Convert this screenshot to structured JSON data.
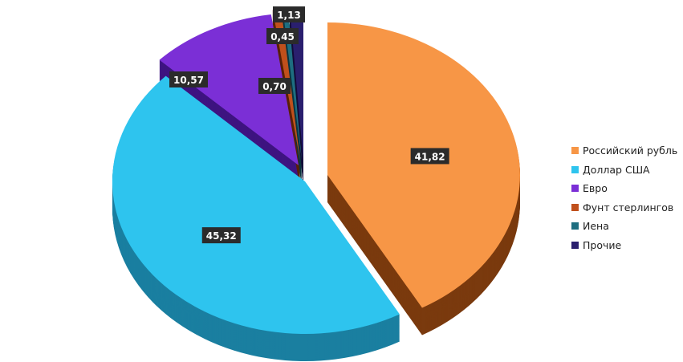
{
  "chart_data": {
    "type": "pie",
    "style": "3d-exploded",
    "categories": [
      "Российский рубль",
      "Доллар США",
      "Евро",
      "Фунт стерлингов",
      "Иена",
      "Прочие"
    ],
    "values": [
      41.82,
      45.32,
      10.57,
      0.7,
      0.45,
      1.13
    ],
    "data_labels": [
      "41,82",
      "45,32",
      "10,57",
      "0,70",
      "0,45",
      "1,13"
    ],
    "colors": [
      "#F79646",
      "#2EC4EE",
      "#7B2FD6",
      "#C0501C",
      "#1E6E80",
      "#2A1F6E"
    ],
    "side_colors": [
      "#7A3A0E",
      "#1A7FA0",
      "#3E1480",
      "#5A2008",
      "#0C3640",
      "#140E3A"
    ],
    "legend_position": "right"
  }
}
